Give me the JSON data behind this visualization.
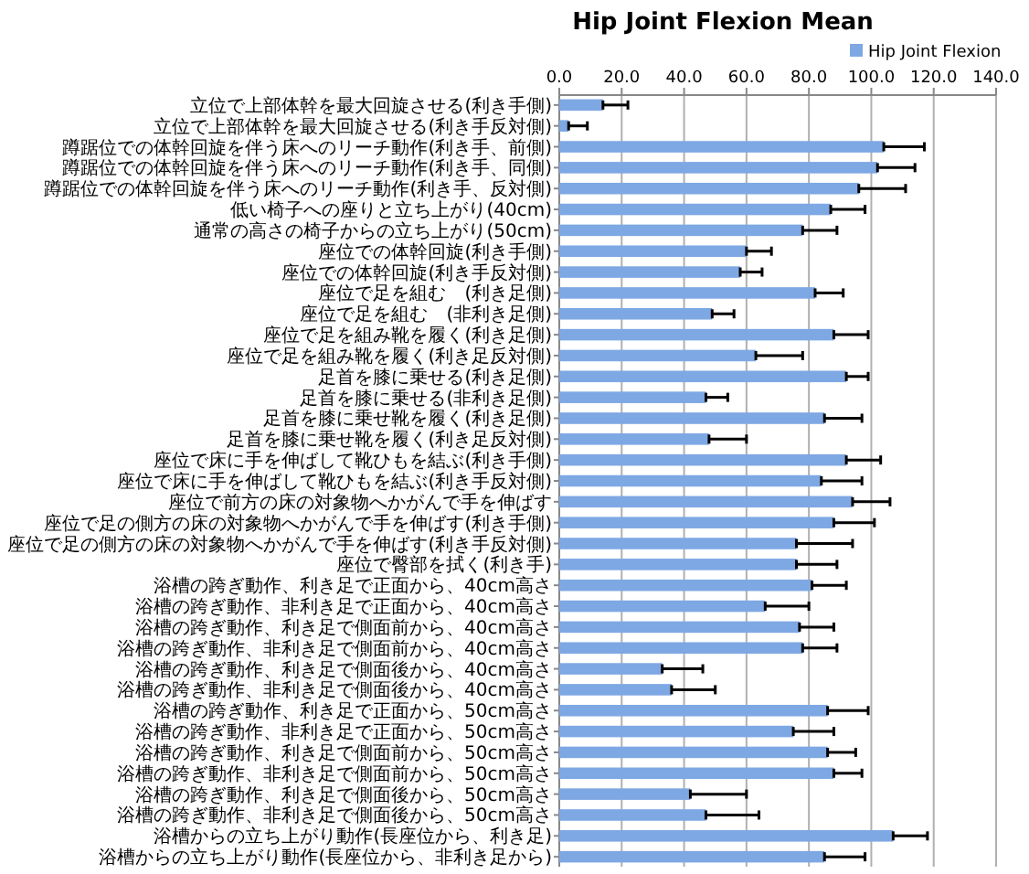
{
  "chart_data": {
    "type": "bar",
    "orientation": "horizontal",
    "title": "Hip Joint Flexion  Mean",
    "categories": [
      "立位で上部体幹を最大回旋させる(利き手側)",
      "立位で上部体幹を最大回旋させる(利き手反対側)",
      "蹲踞位での体幹回旋を伴う床へのリーチ動作(利き手、前側)",
      "蹲踞位での体幹回旋を伴う床へのリーチ動作(利き手、同側)",
      "蹲踞位での体幹回旋を伴う床へのリーチ動作(利き手、反対側)",
      "低い椅子への座りと立ち上がり(40cm)",
      "通常の高さの椅子からの立ち上がり(50cm)",
      "座位での体幹回旋(利き手側)",
      "座位での体幹回旋(利き手反対側)",
      "座位で足を組む　(利き足側)",
      "座位で足を組む　(非利き足側)",
      "座位で足を組み靴を履く(利き足側)",
      "座位で足を組み靴を履く(利き足反対側)",
      "足首を膝に乗せる(利き足側)",
      "足首を膝に乗せる(非利き足側)",
      "足首を膝に乗せ靴を履く(利き足側)",
      "足首を膝に乗せ靴を履く(利き足反対側)",
      "座位で床に手を伸ばして靴ひもを結ぶ(利き手側)",
      "座位で床に手を伸ばして靴ひもを結ぶ(利き手反対側)",
      "座位で前方の床の対象物へかがんで手を伸ばす",
      "座位で足の側方の床の対象物へかがんで手を伸ばす(利き手側)",
      "座位で足の側方の床の対象物へかがんで手を伸ばす(利き手反対側)",
      "座位で臀部を拭く(利き手)",
      "浴槽の跨ぎ動作、利き足で正面から、40cm高さ",
      "浴槽の跨ぎ動作、非利き足で正面から、40cm高さ",
      "浴槽の跨ぎ動作、利き足で側面前から、40cm高さ",
      "浴槽の跨ぎ動作、非利き足で側面前から、40cm高さ",
      "浴槽の跨ぎ動作、利き足で側面後から、40cm高さ",
      "浴槽の跨ぎ動作、非利き足で側面後から、40cm高さ",
      "浴槽の跨ぎ動作、利き足で正面から、50cm高さ",
      "浴槽の跨ぎ動作、非利き足で正面から、50cm高さ",
      "浴槽の跨ぎ動作、利き足で側面前から、50cm高さ",
      "浴槽の跨ぎ動作、非利き足で側面前から、50cm高さ",
      "浴槽の跨ぎ動作、利き足で側面後から、50cm高さ",
      "浴槽の跨ぎ動作、非利き足で側面後から、50cm高さ",
      "浴槽からの立ち上がり動作(長座位から、利き足)",
      "浴槽からの立ち上がり動作(長座位から、非利き足から)"
    ],
    "series": [
      {
        "name": "Hip Joint Flexion",
        "color": "#7ea8e4",
        "values": [
          14,
          3,
          104,
          102,
          96,
          87,
          78,
          60,
          58,
          82,
          49,
          88,
          63,
          92,
          47,
          85,
          48,
          92,
          84,
          94,
          88,
          76,
          76,
          81,
          66,
          77,
          78,
          33,
          36,
          86,
          75,
          86,
          88,
          42,
          47,
          107,
          85
        ],
        "errors": [
          [
            14,
            22
          ],
          [
            3,
            9
          ],
          [
            104,
            117
          ],
          [
            102,
            114
          ],
          [
            96,
            111
          ],
          [
            87,
            98
          ],
          [
            78,
            89
          ],
          [
            60,
            68
          ],
          [
            58,
            65
          ],
          [
            82,
            91
          ],
          [
            49,
            56
          ],
          [
            88,
            99
          ],
          [
            63,
            78
          ],
          [
            92,
            99
          ],
          [
            47,
            54
          ],
          [
            85,
            97
          ],
          [
            48,
            60
          ],
          [
            92,
            103
          ],
          [
            84,
            97
          ],
          [
            94,
            106
          ],
          [
            88,
            101
          ],
          [
            76,
            94
          ],
          [
            76,
            89
          ],
          [
            81,
            92
          ],
          [
            66,
            80
          ],
          [
            77,
            88
          ],
          [
            78,
            89
          ],
          [
            33,
            46
          ],
          [
            36,
            50
          ],
          [
            86,
            99
          ],
          [
            75,
            88
          ],
          [
            86,
            95
          ],
          [
            88,
            97
          ],
          [
            42,
            60
          ],
          [
            47,
            64
          ],
          [
            107,
            118
          ],
          [
            85,
            98
          ]
        ]
      }
    ],
    "xlim": [
      0,
      140
    ],
    "xticks": [
      {
        "value": 0,
        "label": "0.0"
      },
      {
        "value": 20,
        "label": "20.0"
      },
      {
        "value": 40,
        "label": "40.0"
      },
      {
        "value": 60,
        "label": "60.0"
      },
      {
        "value": 80,
        "label": "80.0"
      },
      {
        "value": 100,
        "label": "100.0"
      },
      {
        "value": 120,
        "label": "120.0"
      },
      {
        "value": 140,
        "label": "140.0"
      }
    ],
    "grid": true,
    "legend": "top right"
  }
}
